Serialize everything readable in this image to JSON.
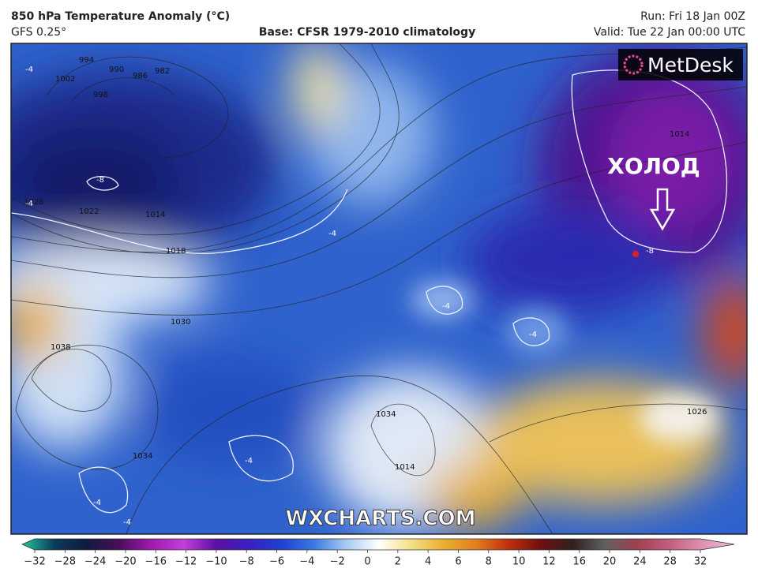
{
  "header": {
    "title": "850 hPa Temperature Anomaly (°C)",
    "model": "GFS 0.25°",
    "base": "Base: CFSR 1979-2010 climatology",
    "run": "Run: Fri 18 Jan 00Z",
    "valid": "Valid: Tue 22 Jan 00:00 UTC"
  },
  "logo": "MetDesk",
  "watermark": "WXCHARTS.COM",
  "annotation": "ХОЛОД",
  "isobar_labels": [
    "1002",
    "998",
    "994",
    "990",
    "986",
    "982",
    "1026",
    "1022",
    "1014",
    "1018",
    "1030",
    "1038",
    "1034",
    "1014",
    "1014",
    "1026",
    "1034"
  ],
  "anomaly_labels": [
    "-4",
    "-8",
    "-4",
    "-8",
    "-4",
    "-4",
    "-4",
    "-4",
    "-4",
    "-4"
  ],
  "colorbar": {
    "ticks": [
      "−32",
      "−28",
      "−24",
      "−20",
      "−16",
      "−12",
      "−10",
      "−8",
      "−6",
      "−4",
      "−2",
      "0",
      "2",
      "4",
      "6",
      "8",
      "10",
      "12",
      "16",
      "20",
      "24",
      "28",
      "32"
    ],
    "colors": [
      "#1fc89a",
      "#0b3a5a",
      "#101a40",
      "#4a0e5a",
      "#a01ab0",
      "#c040d8",
      "#5a10a0",
      "#3a20c0",
      "#2040d0",
      "#3a78e0",
      "#a8c8f0",
      "#ffffff",
      "#f5e08a",
      "#e8b030",
      "#e08020",
      "#c03010",
      "#701010",
      "#302020",
      "#606060",
      "#a04050",
      "#c06080",
      "#e090b0",
      "#f0c0d8"
    ]
  }
}
